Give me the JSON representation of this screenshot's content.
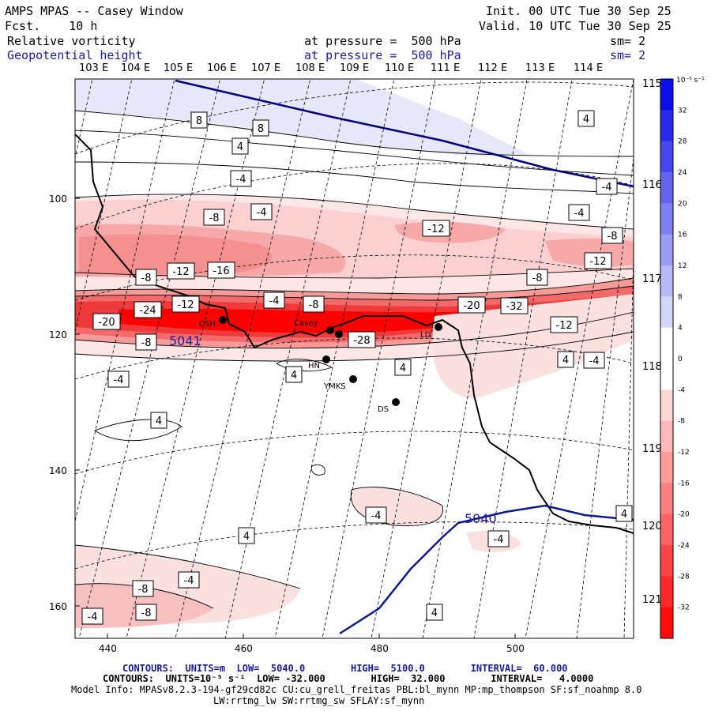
{
  "header": {
    "title": "AMPS MPAS -- Casey Window",
    "fcst_label": "Fcst.",
    "fcst_value": "10 h",
    "init_label": "Init.",
    "init_value": "00 UTC Tue 30 Sep 25",
    "valid_label": "Valid.",
    "valid_value": "10 UTC Tue 30 Sep 25",
    "field1_name": "Relative vorticity",
    "field1_level": "at pressure =  500 hPa",
    "field1_sm": "sm= 2",
    "field2_name": "Geopotential height",
    "field2_level": "at pressure =  500 hPa",
    "field2_sm": "sm= 2"
  },
  "map": {
    "lon_labels_top": [
      "103 E",
      "104 E",
      "105 E",
      "106 E",
      "107 E",
      "108 E",
      "109 E",
      "110 E",
      "111 E",
      "112 E",
      "113 E",
      "114 E"
    ],
    "lon_labels_right": [
      "115 E",
      "116 E",
      "117 E",
      "118 E",
      "119 E",
      "120 E",
      "121 E"
    ],
    "x_ticks": [
      "440",
      "460",
      "480",
      "500"
    ],
    "y_ticks": [
      "100",
      "120",
      "140",
      "160"
    ],
    "stations": [
      "CSH",
      "Casey",
      "HN",
      "YMKS",
      "DS",
      "LD"
    ],
    "height_labels": [
      "5041",
      "5040"
    ],
    "vort_labels": [
      "8",
      "8",
      "4",
      "-4",
      "-4",
      "-8",
      "-4",
      "-12",
      "-4",
      "-8",
      "-12",
      "-16",
      "-8",
      "-8",
      "-12",
      "-24",
      "-12",
      "-4",
      "-8",
      "-20",
      "-8",
      "-28",
      "-20",
      "-32",
      "-12",
      "4",
      "-4",
      "4",
      "-4",
      "4",
      "4",
      "-4",
      "-4",
      "4",
      "-4",
      "4",
      "-8",
      "-4",
      "-8",
      "-4",
      "-4",
      "4",
      "4"
    ]
  },
  "colorbar": {
    "unit": "10⁻⁵ s⁻¹",
    "labels": [
      "32",
      "28",
      "24",
      "20",
      "16",
      "12",
      "8",
      "4",
      "0",
      "-4",
      "-8",
      "-12",
      "-16",
      "-20",
      "-24",
      "-28",
      "-32"
    ],
    "positive_color": "#0000e6",
    "negative_color": "#ff0000"
  },
  "footer": {
    "line1": "CONTOURS:  UNITS=m  LOW=  5040.0        HIGH=  5100.0        INTERVAL=  60.000",
    "line2": "CONTOURS:  UNITS=10⁻⁵ s⁻¹  LOW= -32.000        HIGH=  32.000        INTERVAL=   4.0000",
    "line3": "Model Info: MPASv8.2.3-194-gf29cd82c CU:cu_grell_freitas PBL:bl_mynn MP:mp_thompson SF:sf_noahmp 8.0",
    "line4": "LW:rrtmg_lw SW:rrtmg_sw SFLAY:sf_mynn"
  }
}
